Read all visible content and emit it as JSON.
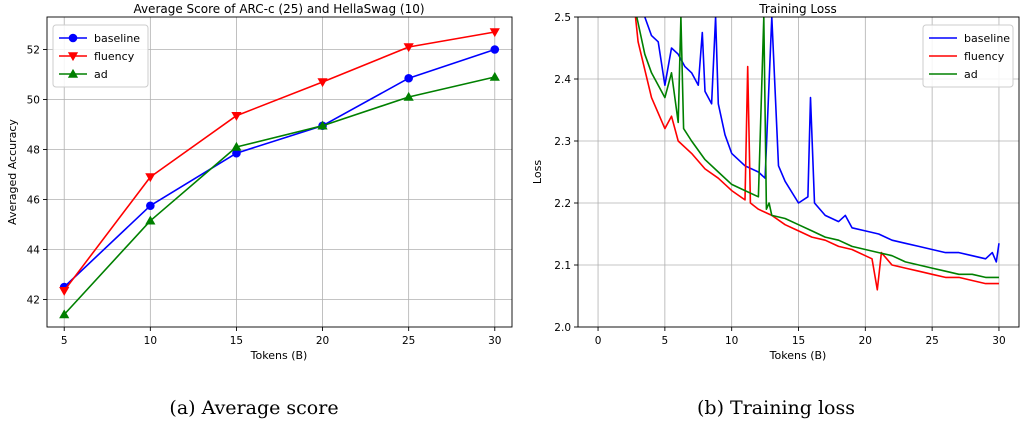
{
  "chart_data": [
    {
      "type": "line",
      "title": "Average Score of ARC-c (25) and HellaSwag (10)",
      "xlabel": "Tokens (B)",
      "ylabel": "Averaged Accuracy",
      "xlim": [
        4,
        31
      ],
      "ylim": [
        40.9,
        53.3
      ],
      "xticks": [
        5,
        10,
        15,
        20,
        25,
        30
      ],
      "yticks": [
        42,
        44,
        46,
        48,
        50,
        52
      ],
      "grid": true,
      "legend": "upper-left",
      "x": [
        5,
        10,
        15,
        20,
        25,
        30
      ],
      "series": [
        {
          "name": "baseline",
          "color": "#0000ff",
          "marker": "circle",
          "values": [
            42.5,
            45.75,
            47.85,
            48.95,
            50.85,
            52.0
          ]
        },
        {
          "name": "fluency",
          "color": "#ff0000",
          "marker": "triangle-down",
          "values": [
            42.35,
            46.9,
            49.35,
            50.7,
            52.1,
            52.7
          ]
        },
        {
          "name": "ad",
          "color": "#008000",
          "marker": "triangle-up",
          "values": [
            41.4,
            45.15,
            48.1,
            48.95,
            50.1,
            50.9
          ]
        }
      ],
      "caption": "(a) Average score"
    },
    {
      "type": "line",
      "title": "Training Loss",
      "xlabel": "Tokens (B)",
      "ylabel": "Loss",
      "xlim": [
        -1.5,
        31.5
      ],
      "ylim": [
        2.0,
        2.5
      ],
      "xticks": [
        0,
        5,
        10,
        15,
        20,
        25,
        30
      ],
      "yticks": [
        2.0,
        2.1,
        2.2,
        2.3,
        2.4,
        2.5
      ],
      "grid": true,
      "legend": "upper-right",
      "series": [
        {
          "name": "baseline",
          "color": "#0000ff",
          "x": [
            3.5,
            4,
            4.5,
            5,
            5.5,
            6,
            6.5,
            7,
            7.5,
            7.8,
            8,
            8.5,
            8.8,
            9,
            9.5,
            10,
            11,
            12,
            12.5,
            13,
            13.5,
            14,
            15,
            15.7,
            15.9,
            16.2,
            17,
            18,
            18.5,
            19,
            20,
            21,
            22,
            23,
            24,
            25,
            26,
            27,
            28,
            29,
            29.5,
            29.8,
            30
          ],
          "y": [
            2.5,
            2.47,
            2.46,
            2.39,
            2.45,
            2.44,
            2.42,
            2.41,
            2.39,
            2.475,
            2.38,
            2.36,
            2.5,
            2.36,
            2.31,
            2.28,
            2.26,
            2.25,
            2.24,
            2.5,
            2.26,
            2.235,
            2.2,
            2.21,
            2.37,
            2.2,
            2.18,
            2.17,
            2.18,
            2.16,
            2.155,
            2.15,
            2.14,
            2.135,
            2.13,
            2.125,
            2.12,
            2.12,
            2.115,
            2.11,
            2.12,
            2.105,
            2.135
          ]
        },
        {
          "name": "fluency",
          "color": "#ff0000",
          "x": [
            2.8,
            3,
            4,
            5,
            5.5,
            6,
            7,
            8,
            9,
            10,
            11,
            11.2,
            11.4,
            12,
            13,
            14,
            15,
            16,
            17,
            18,
            19,
            20,
            20.5,
            20.9,
            21.2,
            22,
            23,
            24,
            25,
            26,
            27,
            28,
            29,
            30
          ],
          "y": [
            2.5,
            2.46,
            2.37,
            2.32,
            2.34,
            2.3,
            2.28,
            2.255,
            2.24,
            2.22,
            2.205,
            2.42,
            2.2,
            2.19,
            2.18,
            2.165,
            2.155,
            2.145,
            2.14,
            2.13,
            2.125,
            2.115,
            2.11,
            2.06,
            2.12,
            2.1,
            2.095,
            2.09,
            2.085,
            2.08,
            2.08,
            2.075,
            2.07,
            2.07
          ]
        },
        {
          "name": "ad",
          "color": "#008000",
          "x": [
            2.9,
            3.5,
            4,
            5,
            5.5,
            6,
            6.2,
            6.4,
            7,
            8,
            9,
            10,
            11,
            12,
            12.4,
            12.6,
            12.8,
            13,
            14,
            15,
            16,
            17,
            18,
            19,
            20,
            21,
            22,
            23,
            24,
            25,
            26,
            27,
            28,
            29,
            30
          ],
          "y": [
            2.5,
            2.44,
            2.41,
            2.37,
            2.41,
            2.33,
            2.5,
            2.32,
            2.3,
            2.27,
            2.25,
            2.23,
            2.22,
            2.21,
            2.5,
            2.19,
            2.2,
            2.18,
            2.175,
            2.165,
            2.155,
            2.145,
            2.14,
            2.13,
            2.125,
            2.12,
            2.115,
            2.105,
            2.1,
            2.095,
            2.09,
            2.085,
            2.085,
            2.08,
            2.08
          ]
        }
      ],
      "caption": "(b) Training loss"
    }
  ]
}
